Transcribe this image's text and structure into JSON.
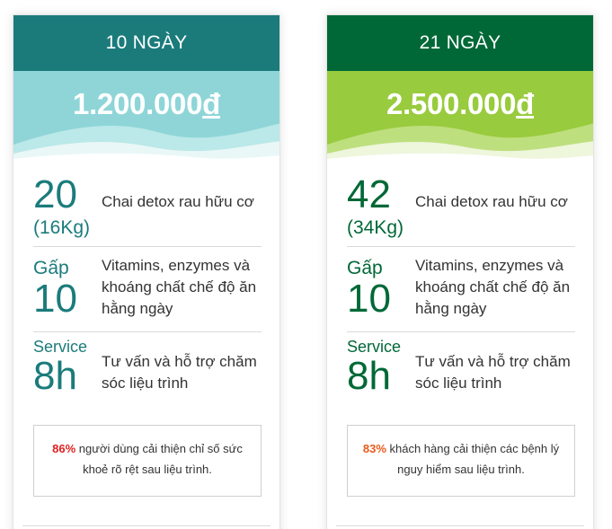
{
  "plans": [
    {
      "duration": "10 NGÀY",
      "price_value": "1.200.000",
      "price_currency": "đ",
      "features": [
        {
          "big": "20",
          "sub": "(16Kg)",
          "desc": "Chai detox rau hữu cơ"
        },
        {
          "pre": "Gấp",
          "big": "10",
          "desc": "Vitamins, enzymes và khoáng chất chế độ ăn hằng ngày"
        },
        {
          "pre": "Service",
          "big": "8h",
          "desc": "Tư vấn và hỗ trợ chăm sóc liệu trình"
        }
      ],
      "note_percent": "86%",
      "note_text": " người dùng cải thiện chỉ số sức khoẻ rõ rệt sau liệu trình."
    },
    {
      "duration": "21 NGÀY",
      "price_value": "2.500.000",
      "price_currency": "đ",
      "features": [
        {
          "big": "42",
          "sub": "(34Kg)",
          "desc": "Chai detox rau hữu cơ"
        },
        {
          "pre": "Gấp",
          "big": "10",
          "desc": "Vitamins, enzymes và khoáng chất chế độ ăn hằng ngày"
        },
        {
          "pre": "Service",
          "big": "8h",
          "desc": "Tư vấn và hỗ trợ chăm sóc liệu trình"
        }
      ],
      "note_percent": "83%",
      "note_text": " khách hàng cải thiện các bệnh lý nguy hiểm sau liệu trình."
    }
  ],
  "colors": {
    "plan1_header": "#1b7b7b",
    "plan1_band": "#8fd5d8",
    "plan2_header": "#006837",
    "plan2_band": "#98cb3d",
    "note_pct_1": "#e02020",
    "note_pct_2": "#e85a1b"
  }
}
